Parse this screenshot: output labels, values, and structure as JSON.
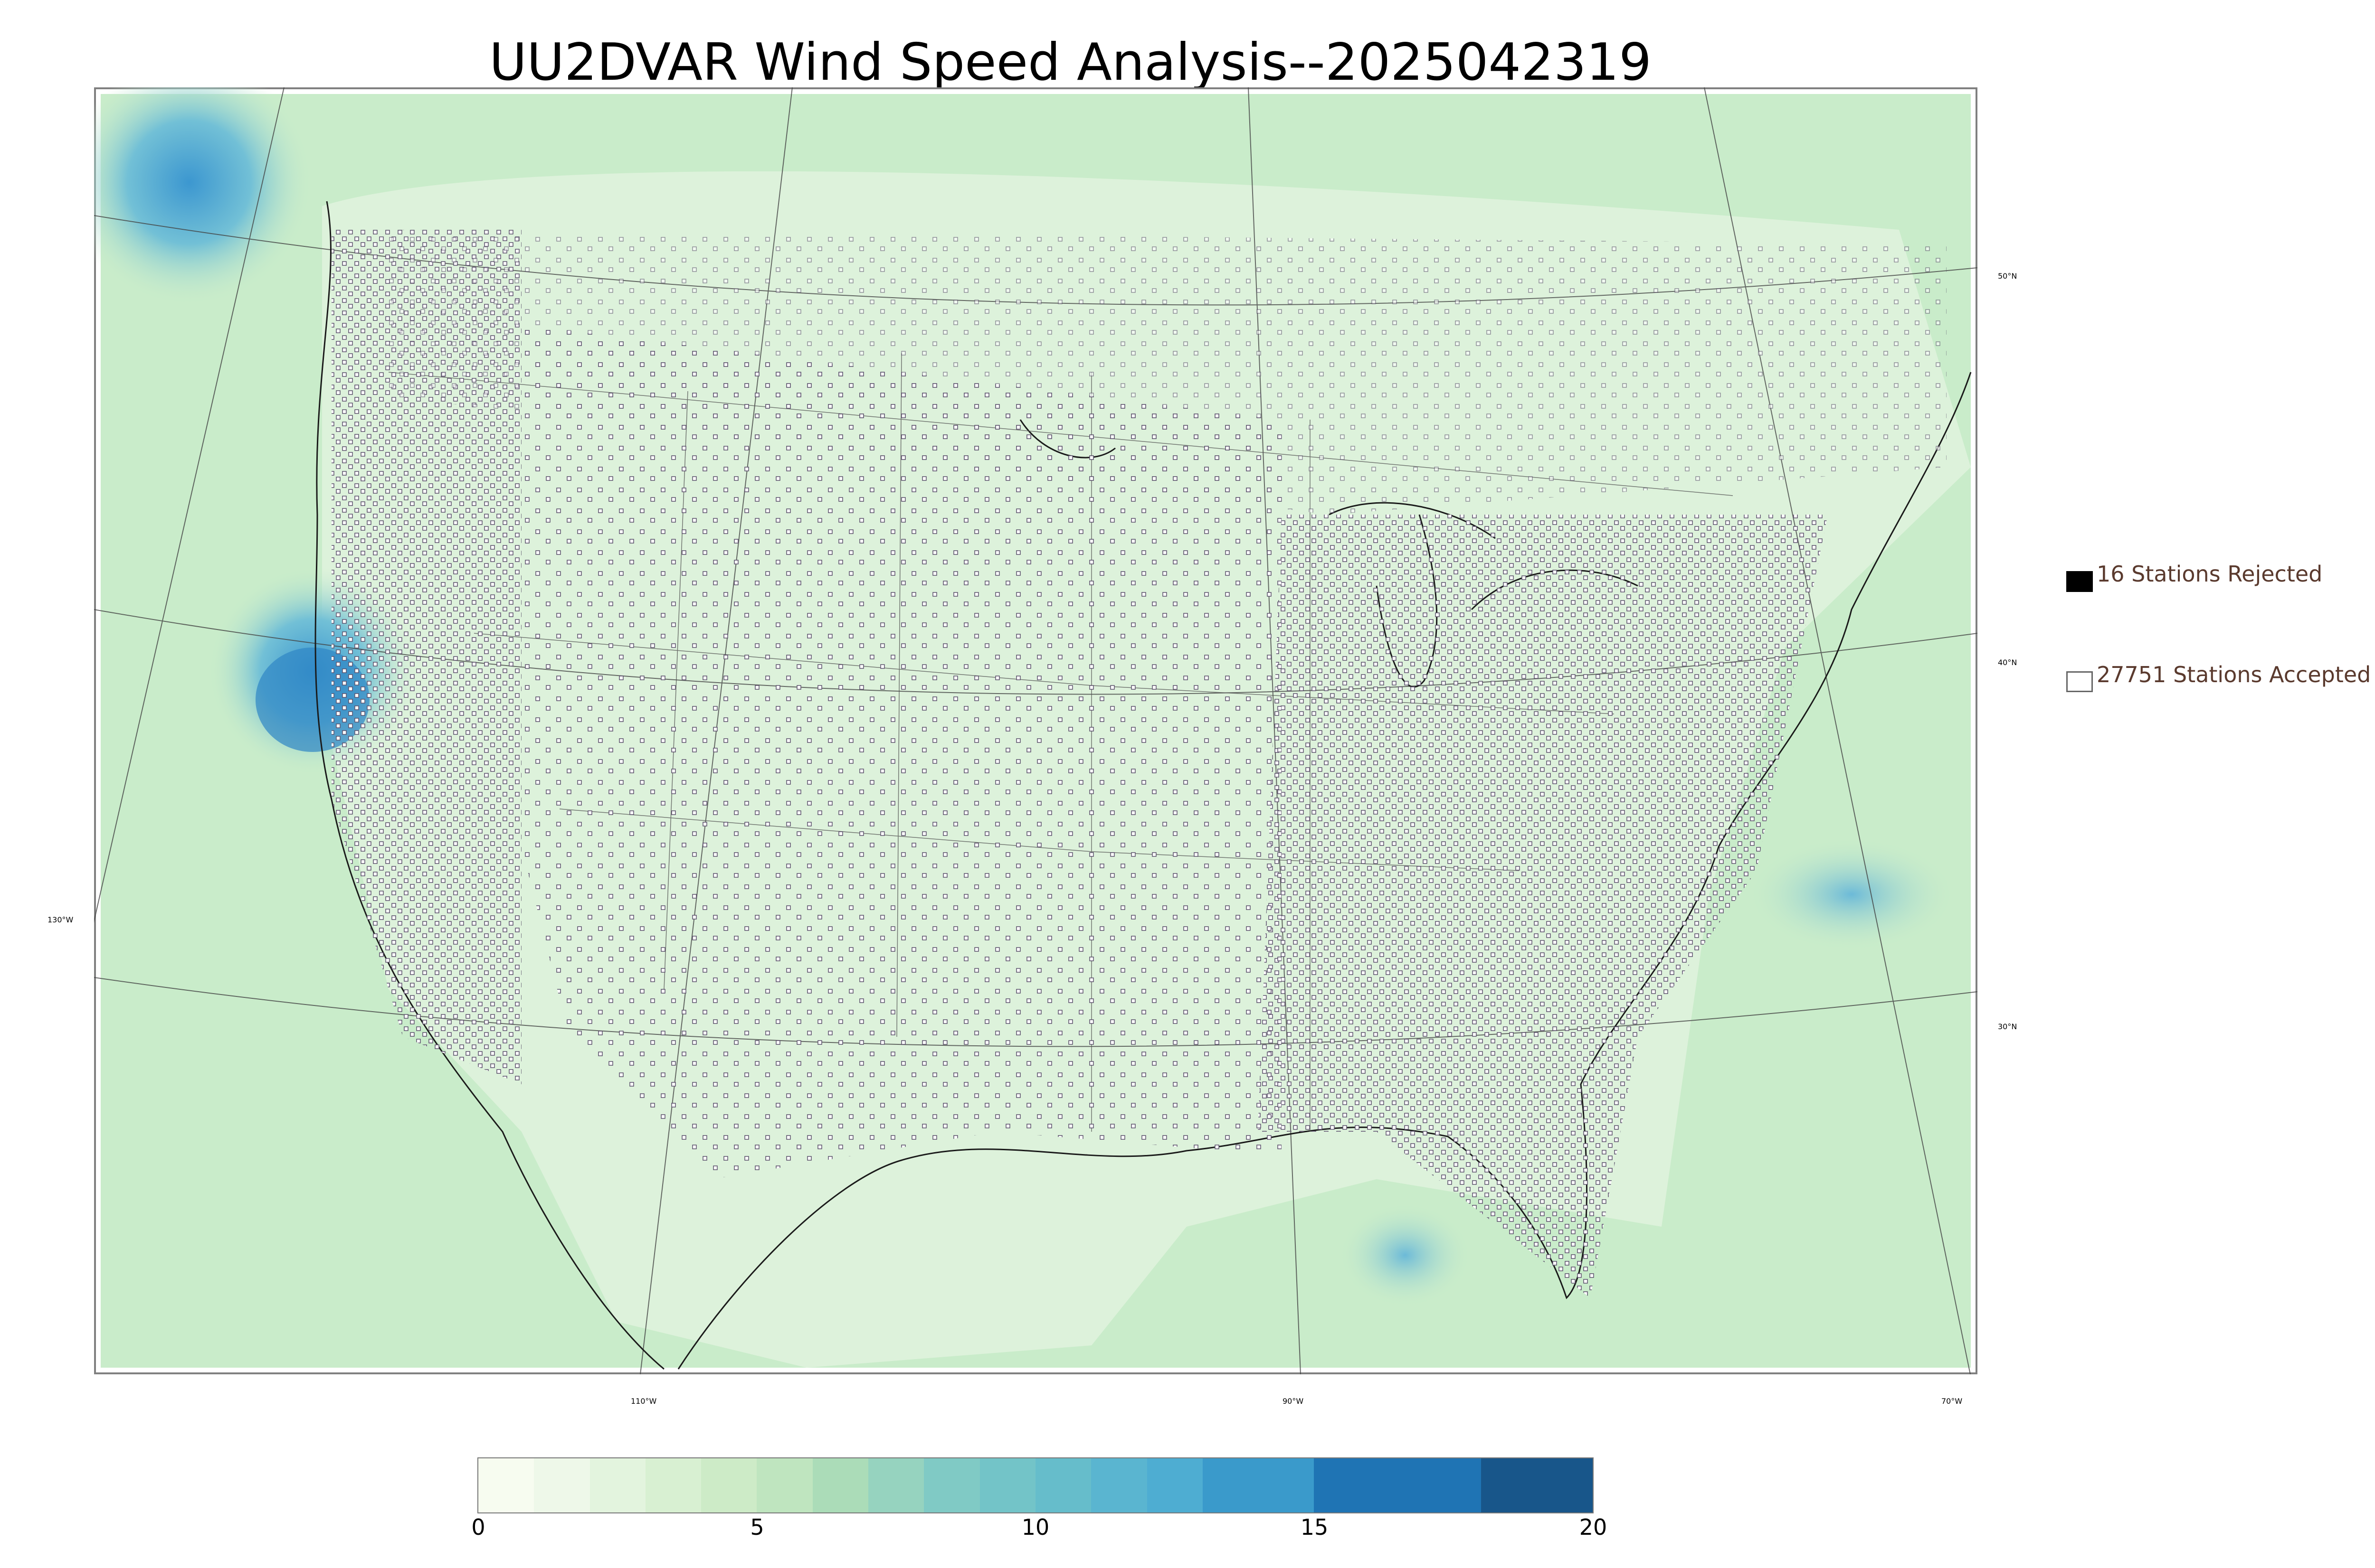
{
  "title": "UU2DVAR Wind Speed Analysis--2025042319",
  "latitude_labels": [
    "50°N",
    "40°N",
    "30°N"
  ],
  "longitude_labels": [
    "130°W",
    "110°W",
    "90°W",
    "70°W"
  ],
  "legend": {
    "rejected": {
      "label": "16 Stations Rejected",
      "color": "#000000"
    },
    "accepted": {
      "label": "27751 Stations Accepted",
      "color": "#ffffff"
    }
  },
  "colorbar": {
    "min": 0,
    "max": 20,
    "ticks": [
      "0",
      "5",
      "10",
      "15",
      "20"
    ],
    "bands": [
      {
        "from": 0,
        "to": 1,
        "color": "#f7fcf0"
      },
      {
        "from": 1,
        "to": 2,
        "color": "#eef8e9"
      },
      {
        "from": 2,
        "to": 3,
        "color": "#e3f4de"
      },
      {
        "from": 3,
        "to": 4,
        "color": "#d8f0d2"
      },
      {
        "from": 4,
        "to": 5,
        "color": "#cdebc7"
      },
      {
        "from": 5,
        "to": 6,
        "color": "#bfe5bf"
      },
      {
        "from": 6,
        "to": 7,
        "color": "#abdcb8"
      },
      {
        "from": 7,
        "to": 8,
        "color": "#96d3bf"
      },
      {
        "from": 8,
        "to": 9,
        "color": "#80cac5"
      },
      {
        "from": 9,
        "to": 10,
        "color": "#73c4c8"
      },
      {
        "from": 10,
        "to": 11,
        "color": "#66bdcb"
      },
      {
        "from": 11,
        "to": 12,
        "color": "#5ab5d0"
      },
      {
        "from": 12,
        "to": 13,
        "color": "#4eadd2"
      },
      {
        "from": 13,
        "to": 15,
        "color": "#3a9acb"
      },
      {
        "from": 15,
        "to": 18,
        "color": "#1f74b4"
      },
      {
        "from": 18,
        "to": 20,
        "color": "#18568a"
      }
    ]
  },
  "colors": {
    "map_background": "#c9ecca",
    "land_light": "#e4f5e0",
    "ocean_blue": "#5aaed6",
    "coast_line": "#1a1a1a"
  }
}
